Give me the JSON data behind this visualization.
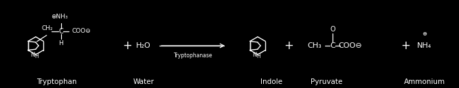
{
  "bg_color": "#000000",
  "fg_color": "#ffffff",
  "figsize": [
    6.68,
    1.29
  ],
  "dpi": 100,
  "tryptophan_label": "Tryptophan",
  "water_label": "Water",
  "arrow_label": "Tryptophanase",
  "indole_label": "Indole",
  "pyruvate_label": "Pyruvate",
  "ammonium_label": "Ammonium",
  "font_size_label": 7.5,
  "font_size_formula": 8.0,
  "font_size_arrow_label": 5.5,
  "font_size_plus": 12,
  "font_size_small": 6.5
}
